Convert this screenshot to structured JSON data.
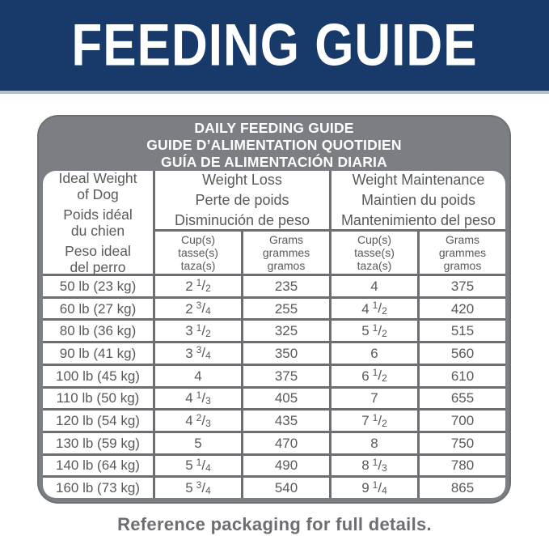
{
  "banner": {
    "title": "FEEDING GUIDE"
  },
  "colors": {
    "banner_bg": "#173a6b",
    "banner_underline": "#b6c1d3",
    "frame_gray": "#7b7e83",
    "grid_line_gray": "#6d6e71",
    "cell_bg": "#ffffff",
    "text_gray": "#58595b",
    "footer_text": "#6d6e71"
  },
  "table": {
    "title_lines": [
      "DAILY FEEDING GUIDE",
      "GUIDE D’ALIMENTATION QUOTIDIEN",
      "GUÍA DE ALIMENTACIÓN DIARIA"
    ],
    "weight_header": [
      [
        "Ideal Weight",
        "of Dog"
      ],
      [
        "Poids idéal",
        "du chien"
      ],
      [
        "Peso ideal",
        "del perro"
      ]
    ],
    "groups": [
      {
        "lines": [
          "Weight Loss",
          "Perte de poids",
          "Disminución de peso"
        ]
      },
      {
        "lines": [
          "Weight Maintenance",
          "Maintien du poids",
          "Mantenimiento del peso"
        ]
      }
    ],
    "subheaders": {
      "cups": [
        "Cup(s)",
        "tasse(s)",
        "taza(s)"
      ],
      "grams": [
        "Grams",
        "grammes",
        "gramos"
      ]
    },
    "rows": [
      {
        "weight": "50 lb (23 kg)",
        "loss_cups": "2 1/2",
        "loss_grams": "235",
        "maint_cups": "4",
        "maint_grams": "375"
      },
      {
        "weight": "60 lb (27 kg)",
        "loss_cups": "2 3/4",
        "loss_grams": "255",
        "maint_cups": "4 1/2",
        "maint_grams": "420"
      },
      {
        "weight": "80 lb (36 kg)",
        "loss_cups": "3 1/2",
        "loss_grams": "325",
        "maint_cups": "5 1/2",
        "maint_grams": "515"
      },
      {
        "weight": "90 lb (41 kg)",
        "loss_cups": "3 3/4",
        "loss_grams": "350",
        "maint_cups": "6",
        "maint_grams": "560"
      },
      {
        "weight": "100 lb (45 kg)",
        "loss_cups": "4",
        "loss_grams": "375",
        "maint_cups": "6 1/2",
        "maint_grams": "610"
      },
      {
        "weight": "110 lb (50 kg)",
        "loss_cups": "4 1/3",
        "loss_grams": "405",
        "maint_cups": "7",
        "maint_grams": "655"
      },
      {
        "weight": "120 lb (54 kg)",
        "loss_cups": "4 2/3",
        "loss_grams": "435",
        "maint_cups": "7 1/2",
        "maint_grams": "700"
      },
      {
        "weight": "130 lb (59 kg)",
        "loss_cups": "5",
        "loss_grams": "470",
        "maint_cups": "8",
        "maint_grams": "750"
      },
      {
        "weight": "140 lb (64 kg)",
        "loss_cups": "5 1/4",
        "loss_grams": "490",
        "maint_cups": "8 1/3",
        "maint_grams": "780"
      },
      {
        "weight": "160 lb (73 kg)",
        "loss_cups": "5 3/4",
        "loss_grams": "540",
        "maint_cups": "9 1/4",
        "maint_grams": "865"
      }
    ]
  },
  "footer": {
    "note": "Reference packaging for full details."
  }
}
